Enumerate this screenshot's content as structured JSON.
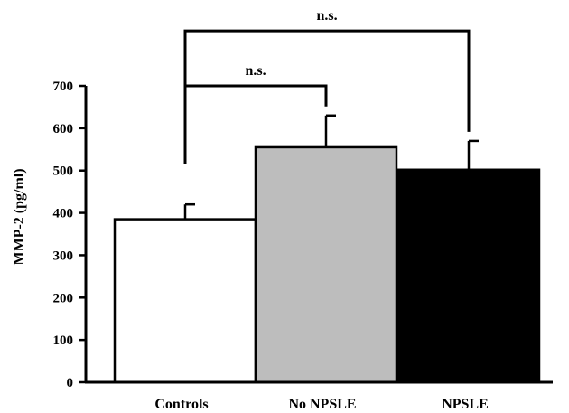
{
  "chart_data": {
    "type": "bar",
    "title": "",
    "xlabel": "",
    "ylabel": "MMP-2 (pg/ml)",
    "ylim": [
      0,
      700
    ],
    "yticks": [
      "0",
      "100",
      "200",
      "300",
      "400",
      "500",
      "600",
      "700"
    ],
    "categories": [
      "Controls",
      "No NPSLE",
      "NPSLE"
    ],
    "values": [
      385,
      555,
      502
    ],
    "errors": [
      35,
      75,
      68
    ],
    "bar_colors": [
      "#ffffff",
      "#bdbdbd",
      "#000000"
    ],
    "grid": false,
    "legend": "none",
    "annotations": [
      {
        "label": "n.s.",
        "from": "Controls",
        "to": "No NPSLE",
        "level": 700
      },
      {
        "label": "n.s.",
        "from": "Controls",
        "to": "NPSLE",
        "level": 830
      }
    ]
  }
}
